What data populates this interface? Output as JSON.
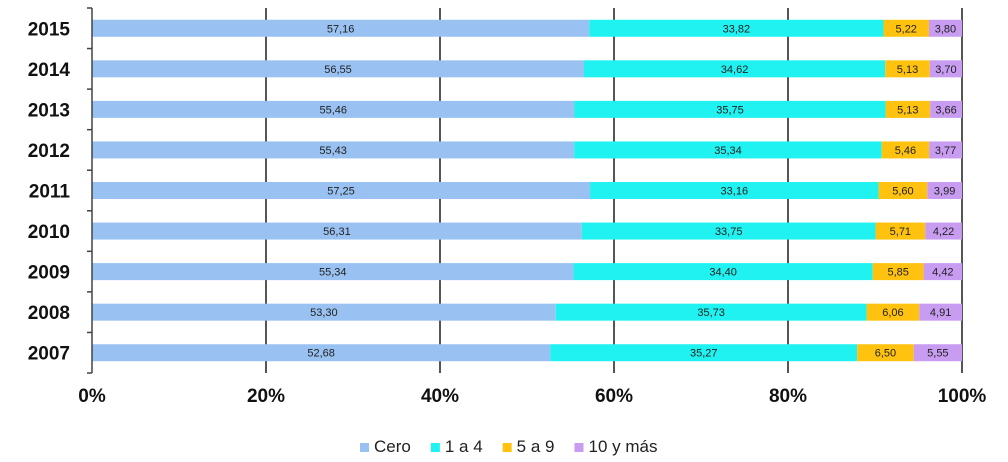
{
  "chart_data": {
    "type": "bar",
    "orientation": "horizontal",
    "stacked": true,
    "title": "",
    "xlabel": "",
    "ylabel": "",
    "categories": [
      "2015",
      "2014",
      "2013",
      "2012",
      "2011",
      "2010",
      "2009",
      "2008",
      "2007"
    ],
    "series": [
      {
        "name": "Cero",
        "color": "#99C2F2",
        "values": [
          57.16,
          56.55,
          55.46,
          55.43,
          57.25,
          56.31,
          55.34,
          53.3,
          52.68
        ],
        "labels": [
          "57,16",
          "56,55",
          "55,46",
          "55,43",
          "57,25",
          "56,31",
          "55,34",
          "53,30",
          "52,68"
        ]
      },
      {
        "name": "1 a 4",
        "color": "#1FF2F0",
        "values": [
          33.82,
          34.62,
          35.75,
          35.34,
          33.16,
          33.75,
          34.4,
          35.73,
          35.27
        ],
        "labels": [
          "33,82",
          "34,62",
          "35,75",
          "35,34",
          "33,16",
          "33,75",
          "34,40",
          "35,73",
          "35,27"
        ]
      },
      {
        "name": "5 a 9",
        "color": "#FFC20E",
        "values": [
          5.22,
          5.13,
          5.13,
          5.46,
          5.6,
          5.71,
          5.85,
          6.06,
          6.5
        ],
        "labels": [
          "5,22",
          "5,13",
          "5,13",
          "5,46",
          "5,60",
          "5,71",
          "5,85",
          "6,06",
          "6,50"
        ]
      },
      {
        "name": "10 y más",
        "color": "#C89CF0",
        "values": [
          3.8,
          3.7,
          3.66,
          3.77,
          3.99,
          4.22,
          4.42,
          4.91,
          5.55
        ],
        "labels": [
          "3,80",
          "3,70",
          "3,66",
          "3,77",
          "3,99",
          "4,22",
          "4,42",
          "4,91",
          "5,55"
        ]
      }
    ],
    "xlim": [
      0,
      100
    ],
    "x_ticks": [
      "0%",
      "20%",
      "40%",
      "60%",
      "80%",
      "100%"
    ],
    "grid": true,
    "legend_position": "bottom"
  }
}
